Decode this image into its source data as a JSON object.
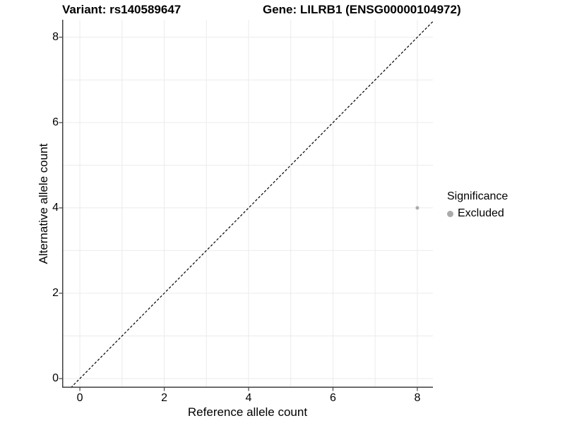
{
  "header": {
    "variant_title": "Variant: rs140589647",
    "gene_title": "Gene: LILRB1 (ENSG00000104972)"
  },
  "axes": {
    "x_label": "Reference allele count",
    "y_label": "Alternative allele count"
  },
  "legend": {
    "title": "Significance",
    "items": [
      {
        "label": "Excluded",
        "color": "#ababab"
      }
    ]
  },
  "colors": {
    "background": "#ffffff",
    "grid": "#ebebeb",
    "axis": "#404040",
    "text": "#000000",
    "point": "#ababab",
    "reference_line": "#000000"
  },
  "chart_data": {
    "type": "scatter",
    "titles": [
      "Variant: rs140589647",
      "Gene: LILRB1 (ENSG00000104972)"
    ],
    "xlabel": "Reference allele count",
    "ylabel": "Alternative allele count",
    "xlim": [
      -0.42,
      8.37
    ],
    "ylim": [
      -0.215,
      8.41
    ],
    "x_ticks": [
      0,
      2,
      4,
      6,
      8
    ],
    "y_ticks": [
      0,
      2,
      4,
      6,
      8
    ],
    "x_gridlines": [
      0,
      1,
      2,
      3,
      4,
      5,
      6,
      7,
      8
    ],
    "y_gridlines": [
      0,
      1,
      2,
      3,
      4,
      5,
      6,
      7,
      8
    ],
    "grid": "on",
    "legend_position": "right",
    "series": [
      {
        "name": "Excluded",
        "color": "#ababab",
        "points": [
          {
            "x": 8,
            "y": 4
          }
        ]
      }
    ],
    "reference_line": {
      "equation": "y = x",
      "style": "dashed",
      "color": "#000000"
    }
  }
}
